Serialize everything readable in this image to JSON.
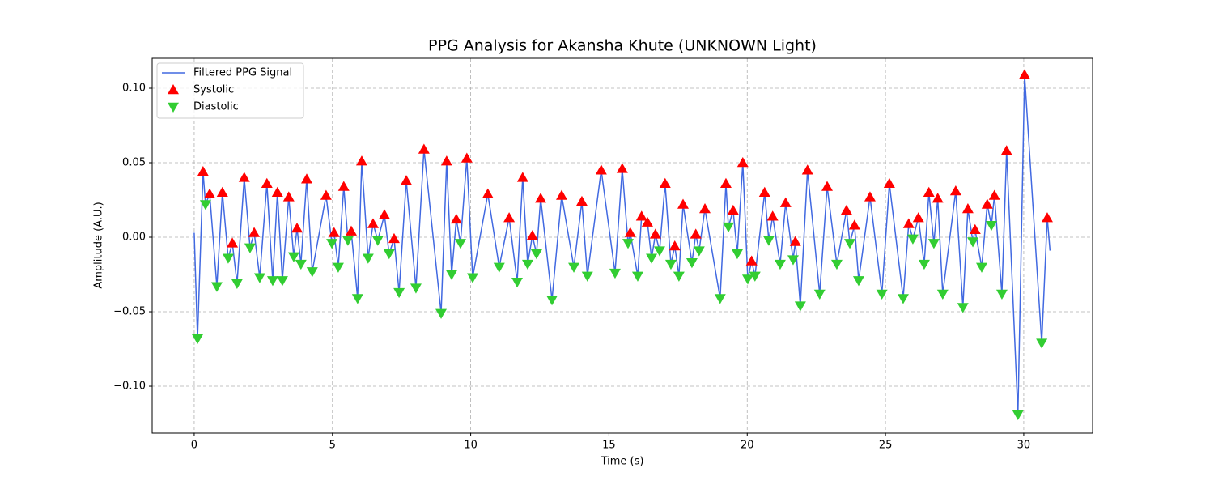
{
  "chart_data": {
    "type": "line",
    "title": "PPG Analysis for Akansha Khute (UNKNOWN Light)",
    "x_label": "Time (s)",
    "y_label": "Amplitude (A.U.)",
    "xlim": [
      -1.52,
      32.49
    ],
    "ylim": [
      -0.1315,
      0.1201
    ],
    "xticks": [
      0,
      5,
      10,
      15,
      20,
      25,
      30
    ],
    "yticks": [
      {
        "value": -0.1,
        "label": "−0.10"
      },
      {
        "value": -0.05,
        "label": "−0.05"
      },
      {
        "value": 0,
        "label": "0.00"
      },
      {
        "value": 0.05,
        "label": "0.05"
      },
      {
        "value": 0.1,
        "label": "0.10"
      }
    ],
    "grid": true,
    "legend": "upper left",
    "series": [
      {
        "name": "Filtered PPG Signal",
        "type": "line",
        "color": "#4169e1",
        "x": [
          0.0,
          0.12,
          0.32,
          0.41,
          0.56,
          0.82,
          1.02,
          1.23,
          1.38,
          1.55,
          1.81,
          2.02,
          2.17,
          2.37,
          2.63,
          2.84,
          3.01,
          3.19,
          3.42,
          3.6,
          3.72,
          3.86,
          4.07,
          4.27,
          4.77,
          4.98,
          5.06,
          5.21,
          5.41,
          5.56,
          5.68,
          5.91,
          6.06,
          6.29,
          6.47,
          6.64,
          6.88,
          7.05,
          7.23,
          7.41,
          7.67,
          8.02,
          8.31,
          8.93,
          9.13,
          9.31,
          9.48,
          9.63,
          9.86,
          10.07,
          10.62,
          11.03,
          11.39,
          11.68,
          11.88,
          12.06,
          12.23,
          12.38,
          12.53,
          12.94,
          13.29,
          13.73,
          14.02,
          14.22,
          14.72,
          15.22,
          15.48,
          15.69,
          15.77,
          16.04,
          16.18,
          16.39,
          16.54,
          16.68,
          16.83,
          17.03,
          17.24,
          17.38,
          17.53,
          17.68,
          18.0,
          18.14,
          18.26,
          18.47,
          19.02,
          19.23,
          19.32,
          19.49,
          19.64,
          19.84,
          20.02,
          20.16,
          20.28,
          20.63,
          20.78,
          20.92,
          21.19,
          21.39,
          21.66,
          21.74,
          21.92,
          22.18,
          22.62,
          22.89,
          23.24,
          23.59,
          23.71,
          23.88,
          24.03,
          24.44,
          24.87,
          25.14,
          25.64,
          25.84,
          25.99,
          26.19,
          26.4,
          26.57,
          26.75,
          26.89,
          27.07,
          27.54,
          27.8,
          27.98,
          28.16,
          28.24,
          28.48,
          28.68,
          28.83,
          28.94,
          29.21,
          29.38,
          29.79,
          30.03,
          30.65,
          30.85,
          30.95
        ],
        "values": [
          0.003,
          -0.068,
          0.044,
          0.022,
          0.029,
          -0.033,
          0.03,
          -0.014,
          -0.004,
          -0.031,
          0.04,
          -0.007,
          0.003,
          -0.027,
          0.036,
          -0.029,
          0.03,
          -0.029,
          0.027,
          -0.013,
          0.006,
          -0.018,
          0.039,
          -0.023,
          0.028,
          -0.004,
          0.003,
          -0.02,
          0.034,
          -0.002,
          0.004,
          -0.041,
          0.051,
          -0.014,
          0.009,
          -0.002,
          0.015,
          -0.011,
          -0.001,
          -0.037,
          0.038,
          -0.034,
          0.059,
          -0.051,
          0.051,
          -0.025,
          0.012,
          -0.004,
          0.053,
          -0.027,
          0.029,
          -0.02,
          0.013,
          -0.03,
          0.04,
          -0.018,
          0.001,
          -0.011,
          0.026,
          -0.042,
          0.028,
          -0.02,
          0.024,
          -0.026,
          0.045,
          -0.024,
          0.046,
          -0.004,
          0.003,
          -0.026,
          0.014,
          0.01,
          -0.014,
          0.002,
          -0.009,
          0.036,
          -0.018,
          -0.006,
          -0.026,
          0.022,
          -0.017,
          0.002,
          -0.009,
          0.019,
          -0.041,
          0.036,
          0.007,
          0.018,
          -0.011,
          0.05,
          -0.028,
          -0.016,
          -0.026,
          0.03,
          -0.002,
          0.014,
          -0.018,
          0.023,
          -0.015,
          -0.003,
          -0.046,
          0.045,
          -0.038,
          0.034,
          -0.018,
          0.018,
          -0.004,
          0.008,
          -0.029,
          0.027,
          -0.038,
          0.036,
          -0.041,
          0.009,
          -0.001,
          0.013,
          -0.018,
          0.03,
          -0.004,
          0.026,
          -0.038,
          0.031,
          -0.047,
          0.019,
          -0.003,
          0.005,
          -0.02,
          0.022,
          0.008,
          0.028,
          -0.038,
          0.058,
          -0.119,
          0.109,
          -0.071,
          0.013,
          -0.009
        ]
      },
      {
        "name": "Systolic",
        "type": "scatter",
        "marker": "up",
        "color": "#ff0000",
        "x": [
          0.32,
          0.56,
          1.02,
          1.38,
          1.81,
          2.17,
          2.63,
          3.01,
          3.42,
          3.72,
          4.07,
          4.77,
          5.06,
          5.41,
          5.68,
          6.06,
          6.47,
          6.88,
          7.23,
          7.67,
          8.31,
          9.13,
          9.48,
          9.86,
          10.62,
          11.39,
          11.88,
          12.23,
          12.53,
          13.29,
          14.02,
          14.72,
          15.48,
          15.77,
          16.18,
          16.39,
          16.68,
          17.03,
          17.38,
          17.68,
          18.14,
          18.47,
          19.23,
          19.49,
          19.84,
          20.16,
          20.63,
          20.92,
          21.39,
          21.74,
          22.18,
          22.89,
          23.59,
          23.88,
          24.44,
          25.14,
          25.84,
          26.19,
          26.57,
          26.89,
          27.54,
          27.98,
          28.24,
          28.68,
          28.94,
          29.38,
          30.03,
          30.85
        ],
        "values": [
          0.044,
          0.029,
          0.03,
          -0.004,
          0.04,
          0.003,
          0.036,
          0.03,
          0.027,
          0.006,
          0.039,
          0.028,
          0.003,
          0.034,
          0.004,
          0.051,
          0.009,
          0.015,
          -0.001,
          0.038,
          0.059,
          0.051,
          0.012,
          0.053,
          0.029,
          0.013,
          0.04,
          0.001,
          0.026,
          0.028,
          0.024,
          0.045,
          0.046,
          0.003,
          0.014,
          0.01,
          0.002,
          0.036,
          -0.006,
          0.022,
          0.002,
          0.019,
          0.036,
          0.018,
          0.05,
          -0.016,
          0.03,
          0.014,
          0.023,
          -0.003,
          0.045,
          0.034,
          0.018,
          0.008,
          0.027,
          0.036,
          0.009,
          0.013,
          0.03,
          0.026,
          0.031,
          0.019,
          0.005,
          0.022,
          0.028,
          0.058,
          0.109,
          0.013
        ]
      },
      {
        "name": "Diastolic",
        "type": "scatter",
        "marker": "down",
        "color": "#32cd32",
        "x": [
          0.12,
          0.41,
          0.82,
          1.23,
          1.55,
          2.02,
          2.37,
          2.84,
          3.19,
          3.6,
          3.86,
          4.27,
          4.98,
          5.21,
          5.56,
          5.91,
          6.29,
          6.64,
          7.05,
          7.41,
          8.02,
          8.93,
          9.31,
          9.63,
          10.07,
          11.03,
          11.68,
          12.06,
          12.38,
          12.94,
          13.73,
          14.22,
          15.22,
          15.69,
          16.04,
          16.54,
          16.83,
          17.24,
          17.53,
          18.0,
          18.26,
          19.02,
          19.32,
          19.64,
          20.02,
          20.28,
          20.78,
          21.19,
          21.66,
          21.92,
          22.62,
          23.24,
          23.71,
          24.03,
          24.87,
          25.64,
          25.99,
          26.4,
          26.75,
          27.07,
          27.8,
          28.16,
          28.48,
          28.83,
          29.21,
          29.79,
          30.65
        ],
        "values": [
          -0.068,
          0.022,
          -0.033,
          -0.014,
          -0.031,
          -0.007,
          -0.027,
          -0.029,
          -0.029,
          -0.013,
          -0.018,
          -0.023,
          -0.004,
          -0.02,
          -0.002,
          -0.041,
          -0.014,
          -0.002,
          -0.011,
          -0.037,
          -0.034,
          -0.051,
          -0.025,
          -0.004,
          -0.027,
          -0.02,
          -0.03,
          -0.018,
          -0.011,
          -0.042,
          -0.02,
          -0.026,
          -0.024,
          -0.004,
          -0.026,
          -0.014,
          -0.009,
          -0.018,
          -0.026,
          -0.017,
          -0.009,
          -0.041,
          0.007,
          -0.011,
          -0.028,
          -0.026,
          -0.002,
          -0.018,
          -0.015,
          -0.046,
          -0.038,
          -0.018,
          -0.004,
          -0.029,
          -0.038,
          -0.041,
          -0.001,
          -0.018,
          -0.004,
          -0.038,
          -0.047,
          -0.003,
          -0.02,
          0.008,
          -0.038,
          -0.119,
          -0.071
        ]
      }
    ]
  }
}
